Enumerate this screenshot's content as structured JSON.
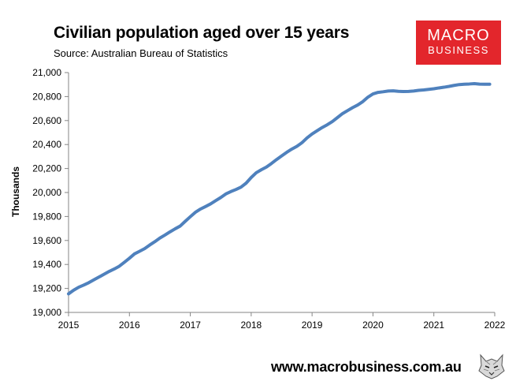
{
  "header": {
    "title": "Civilian population aged over 15 years",
    "subtitle": "Source: Australian Bureau of Statistics"
  },
  "logo": {
    "line1": "MACRO",
    "line2": "BUSINESS",
    "color": "#e3262c"
  },
  "footer": {
    "url": "www.macrobusiness.com.au",
    "icon": "wolf-icon"
  },
  "chart_data": {
    "type": "line",
    "title": "Civilian population aged over 15 years",
    "subtitle": "Source: Australian Bureau of Statistics",
    "xlabel": "",
    "ylabel": "Thousands",
    "xlim": [
      2015,
      2022
    ],
    "ylim": [
      19000,
      21000
    ],
    "x_ticks": [
      "2015",
      "2016",
      "2017",
      "2018",
      "2019",
      "2020",
      "2021",
      "2022"
    ],
    "y_ticks": [
      "19,000",
      "19,200",
      "19,400",
      "19,600",
      "19,800",
      "20,000",
      "20,200",
      "20,400",
      "20,600",
      "20,800",
      "21,000"
    ],
    "grid": false,
    "legend": "none",
    "series_color": "#4f81bd",
    "series": [
      {
        "x": [
          2015.0,
          2015.083,
          2015.167,
          2015.25,
          2015.333,
          2015.417,
          2015.5,
          2015.583,
          2015.667,
          2015.75,
          2015.833,
          2015.917,
          2016.0,
          2016.083,
          2016.167,
          2016.25,
          2016.333,
          2016.417,
          2016.5,
          2016.583,
          2016.667,
          2016.75,
          2016.833,
          2016.917,
          2017.0,
          2017.083,
          2017.167,
          2017.25,
          2017.333,
          2017.417,
          2017.5,
          2017.583,
          2017.667,
          2017.75,
          2017.833,
          2017.917,
          2018.0,
          2018.083,
          2018.167,
          2018.25,
          2018.333,
          2018.417,
          2018.5,
          2018.583,
          2018.667,
          2018.75,
          2018.833,
          2018.917,
          2019.0,
          2019.083,
          2019.167,
          2019.25,
          2019.333,
          2019.417,
          2019.5,
          2019.583,
          2019.667,
          2019.75,
          2019.833,
          2019.917,
          2020.0,
          2020.083,
          2020.167,
          2020.25,
          2020.333,
          2020.417,
          2020.5,
          2020.583,
          2020.667,
          2020.75,
          2020.833,
          2020.917,
          2021.0,
          2021.083,
          2021.167,
          2021.25,
          2021.333,
          2021.417,
          2021.5,
          2021.583,
          2021.667,
          2021.75,
          2021.833,
          2021.917
        ],
        "values": [
          19155,
          19185,
          19210,
          19228,
          19248,
          19272,
          19295,
          19318,
          19342,
          19362,
          19385,
          19418,
          19452,
          19488,
          19510,
          19532,
          19562,
          19590,
          19620,
          19645,
          19672,
          19697,
          19720,
          19760,
          19798,
          19835,
          19862,
          19883,
          19905,
          19932,
          19958,
          19988,
          20008,
          20025,
          20045,
          20078,
          20125,
          20165,
          20190,
          20212,
          20242,
          20275,
          20305,
          20335,
          20362,
          20385,
          20415,
          20455,
          20488,
          20515,
          20542,
          20565,
          20592,
          20625,
          20658,
          20683,
          20708,
          20730,
          20758,
          20795,
          20822,
          20835,
          20840,
          20846,
          20848,
          20844,
          20842,
          20843,
          20846,
          20852,
          20855,
          20860,
          20865,
          20872,
          20878,
          20885,
          20893,
          20900,
          20903,
          20905,
          20908,
          20904,
          20903,
          20903
        ]
      }
    ]
  }
}
